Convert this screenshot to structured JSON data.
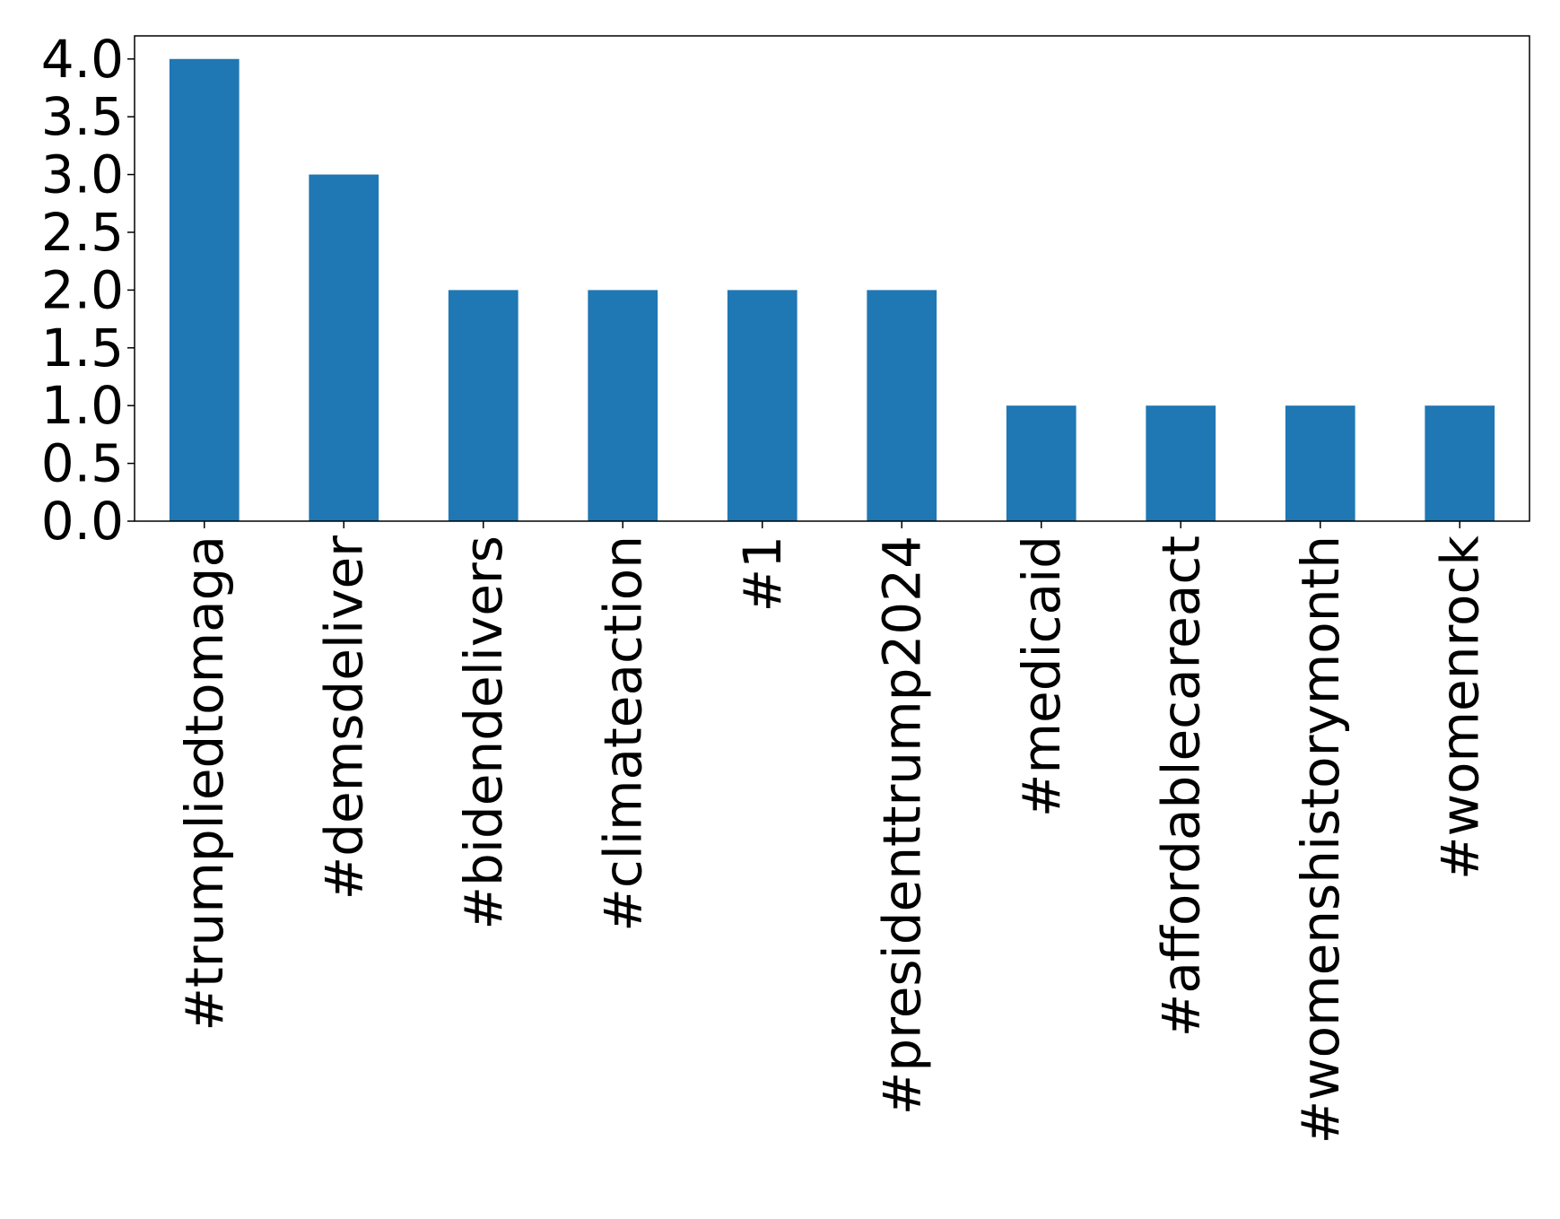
{
  "chart_data": {
    "type": "bar",
    "title": "",
    "xlabel": "",
    "ylabel": "",
    "categories": [
      "#trumpliedtomaga",
      "#demsdeliver",
      "#bidendelivers",
      "#climateaction",
      "#1",
      "#presidenttrump2024",
      "#medicaid",
      "#affordablecareact",
      "#womenshistorymonth",
      "#womenrock"
    ],
    "values": [
      4,
      3,
      2,
      2,
      2,
      2,
      1,
      1,
      1,
      1
    ],
    "ylim": [
      0,
      4.2
    ],
    "yticks": [
      0.0,
      0.5,
      1.0,
      1.5,
      2.0,
      2.5,
      3.0,
      3.5,
      4.0
    ],
    "ytick_labels": [
      "0.0",
      "0.5",
      "1.0",
      "1.5",
      "2.0",
      "2.5",
      "3.0",
      "3.5",
      "4.0"
    ],
    "grid": false,
    "legend": "none",
    "colors": {
      "bar": "#1f77b4",
      "axis": "#000000",
      "text": "#000000"
    }
  }
}
